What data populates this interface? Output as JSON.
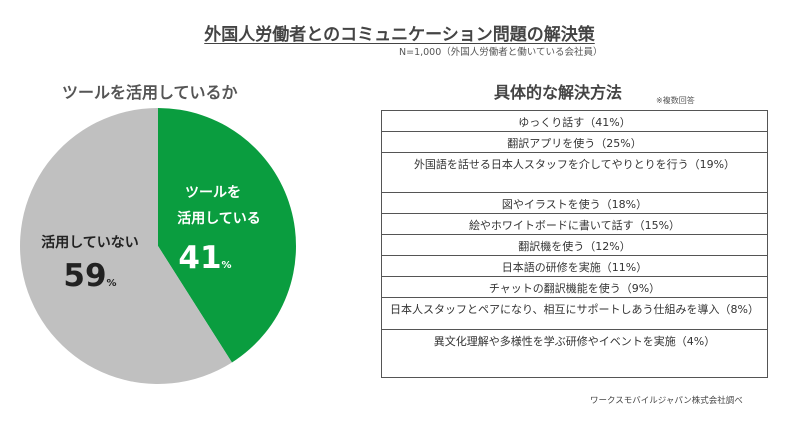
{
  "title": "外国人労働者とのコミュニケーション問題の解決策",
  "note": "N=1,000（外国人労働者と働いている会社員）",
  "left_section": {
    "heading": "ツールを活用しているか",
    "slices": [
      {
        "label_line1": "ツールを",
        "label_line2": "活用している",
        "value": 41,
        "unit": "%",
        "color": "#0a9d3f",
        "text_color": "#ffffff"
      },
      {
        "label_line1": "活用していない",
        "label_line2": "",
        "value": 59,
        "unit": "%",
        "color": "#c0c0c0",
        "text_color": "#222222"
      }
    ]
  },
  "right_section": {
    "heading": "具体的な解決方法",
    "note": "※複数回答",
    "items": [
      {
        "label": "ゆっくり話す（41%）",
        "value": 41
      },
      {
        "label": "翻訳アプリを使う（25%）",
        "value": 25
      },
      {
        "label": "外国語を話せる日本人スタッフを介してやりとりを行う（19%）",
        "value": 19
      },
      {
        "label": "図やイラストを使う（18%）",
        "value": 18
      },
      {
        "label": "絵やホワイトボードに書いて話す（15%）",
        "value": 15
      },
      {
        "label": "翻訳機を使う（12%）",
        "value": 12
      },
      {
        "label": "日本語の研修を実施（11%）",
        "value": 11
      },
      {
        "label": "チャットの翻訳機能を使う（9%）",
        "value": 9
      },
      {
        "label": "日本人スタッフとペアになり、相互にサポートしあう仕組みを導入（8%）",
        "value": 8
      },
      {
        "label": "異文化理解や多様性を学ぶ研修やイベントを実施（4%）",
        "value": 4
      }
    ]
  },
  "source": "ワークスモバイルジャパン株式会社調べ",
  "chart_data": [
    {
      "type": "pie",
      "title": "ツールを活用しているか",
      "categories": [
        "ツールを活用している",
        "活用していない"
      ],
      "values": [
        41,
        59
      ]
    },
    {
      "type": "table",
      "title": "具体的な解決方法",
      "categories": [
        "ゆっくり話す",
        "翻訳アプリを使う",
        "外国語を話せる日本人スタッフを介してやりとりを行う",
        "図やイラストを使う",
        "絵やホワイトボードに書いて話す",
        "翻訳機を使う",
        "日本語の研修を実施",
        "チャットの翻訳機能を使う",
        "日本人スタッフとペアになり、相互にサポートしあう仕組みを導入",
        "異文化理解や多様性を学ぶ研修やイベントを実施"
      ],
      "values": [
        41,
        25,
        19,
        18,
        15,
        12,
        11,
        9,
        8,
        4
      ]
    }
  ]
}
